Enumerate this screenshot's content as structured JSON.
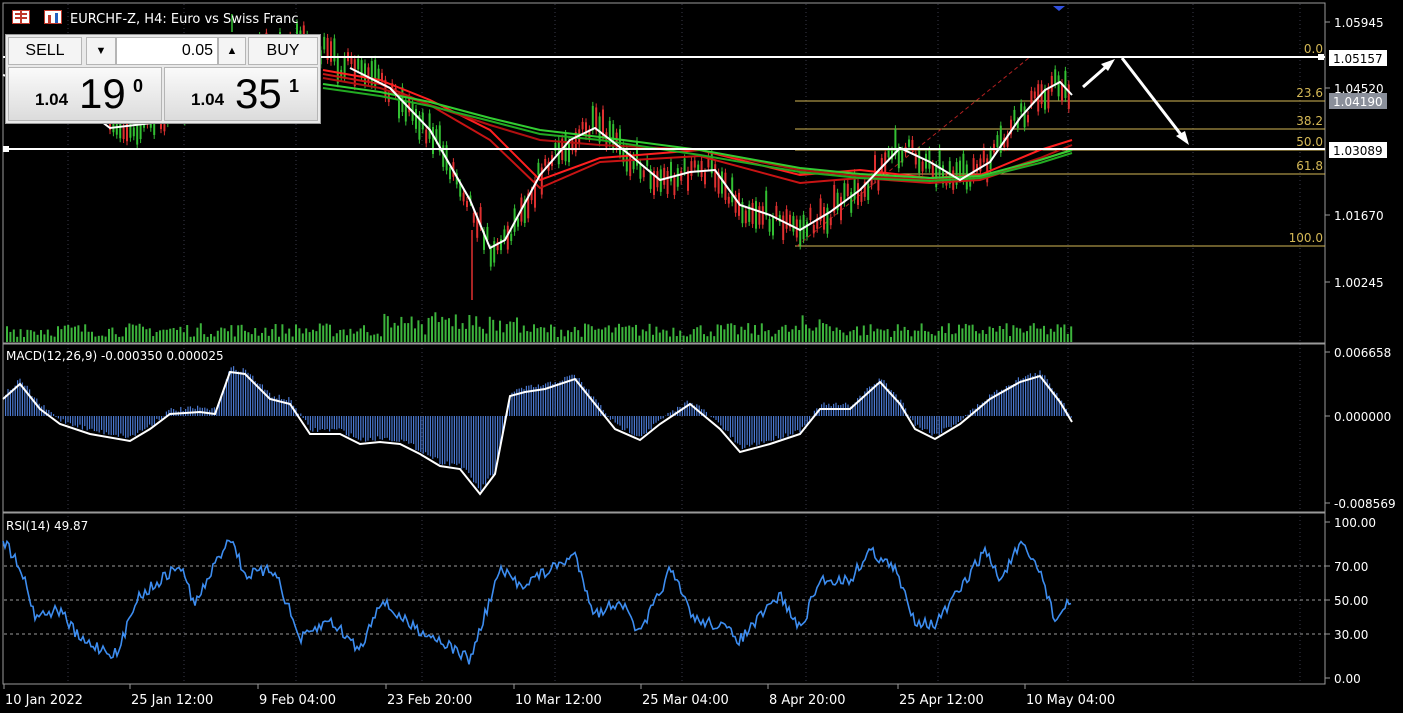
{
  "window": {
    "title": "EURCHF-Z, H4:  Euro vs Swiss Franc",
    "icons": [
      "menu-grid-icon",
      "chart-type-icon"
    ]
  },
  "trade_panel": {
    "sell_label": "SELL",
    "buy_label": "BUY",
    "lot_value": "0.05",
    "down_arrow": "▼",
    "up_arrow": "▲",
    "bid": {
      "prefix": "1.04",
      "big": "19",
      "sup": "0"
    },
    "ask": {
      "prefix": "1.04",
      "big": "35",
      "sup": "1"
    }
  },
  "main_chart": {
    "price_axis_labels": [
      "1.05945",
      "1.04520",
      "1.01670",
      "1.00245"
    ],
    "price_tags": [
      {
        "label": "1.05157",
        "style": "white"
      },
      {
        "label": "1.04190",
        "style": "grey"
      },
      {
        "label": "1.03089",
        "style": "white"
      }
    ],
    "fibonacci_levels": [
      "0.0",
      "23.6",
      "38.2",
      "50.0",
      "61.8",
      "100.0"
    ],
    "colors": {
      "bull_candle": "#33c033",
      "bear_candle": "#e03030",
      "ma_red": "#ff2020",
      "ma_green": "#32cd32",
      "ma_white": "#ffffff",
      "fib": "#d4b856",
      "volume": "#3cb43c"
    }
  },
  "macd": {
    "label": "MACD(12,26,9) -0.000350 0.000025",
    "axis_labels": [
      "0.006658",
      "0.000000",
      "-0.008569"
    ],
    "colors": {
      "histogram": "#4a78d0",
      "signal": "#ffffff"
    }
  },
  "rsi": {
    "label": "RSI(14) 49.87",
    "axis_labels": [
      "100.00",
      "70.00",
      "50.00",
      "30.00",
      "0.00"
    ],
    "colors": {
      "line": "#3d8df0"
    }
  },
  "time_axis": {
    "labels": [
      "10 Jan 2022",
      "25 Jan 12:00",
      "9 Feb 04:00",
      "23 Feb 20:00",
      "10 Mar 12:00",
      "25 Mar 04:00",
      "8 Apr 20:00",
      "25 Apr 12:00",
      "10 May 04:00"
    ]
  }
}
